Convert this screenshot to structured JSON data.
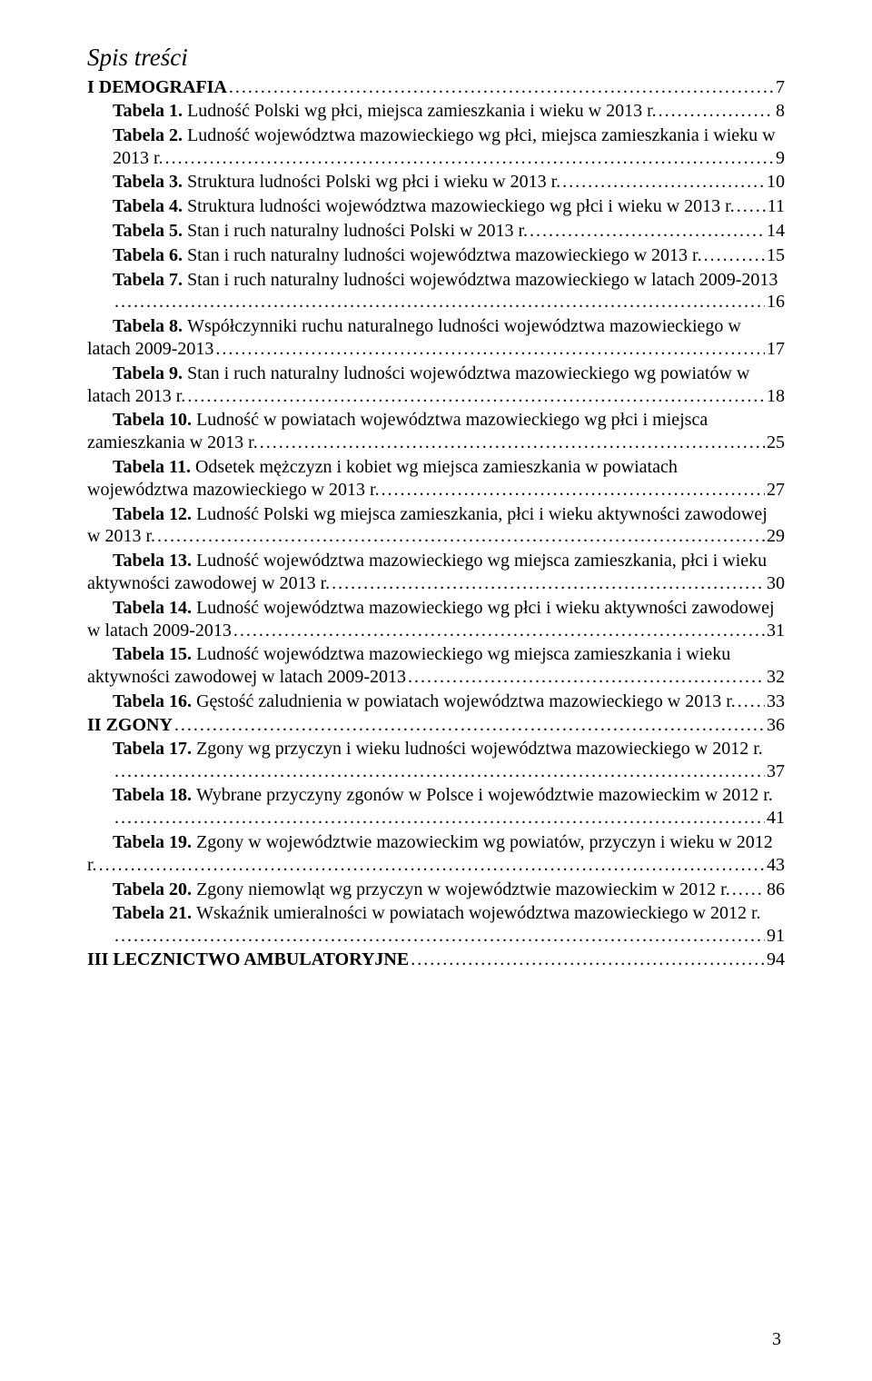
{
  "title": "Spis treści",
  "sections": [
    {
      "label": "I  DEMOGRAFIA",
      "page": "7"
    }
  ],
  "entries": [
    {
      "bold": "Tabela 1.",
      "pre": "",
      "last": "Ludność Polski wg płci, miejsca zamieszkania i wieku w 2013 r.",
      "page": "8"
    },
    {
      "bold": "Tabela 2.",
      "pre": "Ludność województwa mazowieckiego wg płci, miejsca zamieszkania i wieku w",
      "last": "2013 r.",
      "page": "9"
    },
    {
      "bold": "Tabela 3.",
      "pre": "",
      "last": "Struktura ludności Polski wg płci i wieku w 2013 r.",
      "page": "10"
    },
    {
      "bold": "Tabela 4.",
      "pre": "",
      "last": "Struktura ludności województwa mazowieckiego wg płci i wieku w 2013 r. ",
      "page": "11"
    },
    {
      "bold": "Tabela 5.",
      "pre": "",
      "last": "Stan i ruch naturalny ludności Polski w 2013 r.",
      "page": "14"
    },
    {
      "bold": "Tabela 6.",
      "pre": "",
      "last": "Stan i ruch naturalny ludności województwa mazowieckiego w 2013 r.",
      "page": "15"
    },
    {
      "bold": "Tabela 7.",
      "pre": "Stan i ruch naturalny ludności województwa mazowieckiego w latach 2009-2013",
      "last": "",
      "page": "16"
    },
    {
      "bold": "Tabela 8.",
      "pre": "Współczynniki ruchu naturalnego ludności województwa mazowieckiego w",
      "last": "latach 2009-2013",
      "page": "17",
      "noindent": true
    },
    {
      "bold": "Tabela 9.",
      "pre": "Stan i ruch naturalny ludności województwa mazowieckiego wg powiatów w",
      "last": "latach 2013 r. ",
      "page": "18",
      "noindent": true
    },
    {
      "bold": "Tabela 10.",
      "pre": "Ludność w powiatach województwa mazowieckiego wg płci i miejsca",
      "last": "zamieszkania w 2013 r. ",
      "page": "25",
      "noindent": true
    },
    {
      "bold": "Tabela 11.",
      "pre": "Odsetek mężczyzn i kobiet wg miejsca zamieszkania w powiatach",
      "last": "województwa mazowieckiego w 2013 r. ",
      "page": "27",
      "noindent": true
    },
    {
      "bold": "Tabela 12.",
      "pre": "Ludność Polski wg miejsca zamieszkania, płci i wieku aktywności zawodowej",
      "last": "w 2013 r.",
      "page": "29",
      "noindent": true
    },
    {
      "bold": "Tabela 13.",
      "pre": "Ludność województwa mazowieckiego wg miejsca zamieszkania, płci i wieku",
      "last": "aktywności zawodowej w 2013 r. ",
      "page": "30",
      "noindent": true
    },
    {
      "bold": "Tabela 14.",
      "pre": "Ludność województwa mazowieckiego wg płci i wieku aktywności zawodowej",
      "last": "w latach 2009-2013",
      "page": "31",
      "noindent": true
    },
    {
      "bold": "Tabela 15.",
      "pre": "Ludność województwa mazowieckiego wg miejsca zamieszkania i wieku",
      "last": "aktywności zawodowej w latach 2009-2013",
      "page": "32",
      "noindent": true
    },
    {
      "bold": "Tabela 16.",
      "pre": "",
      "last": "Gęstość zaludnienia w powiatach województwa mazowieckiego w 2013 r. ",
      "page": "33"
    }
  ],
  "section2": {
    "label": "II  ZGONY",
    "page": "36"
  },
  "entries2": [
    {
      "bold": "Tabela 17.",
      "pre": "Zgony wg przyczyn i wieku ludności województwa mazowieckiego w 2012 r.",
      "last": "",
      "page": "37"
    },
    {
      "bold": "Tabela 18.",
      "pre": "Wybrane przyczyny zgonów w Polsce i województwie mazowieckim w 2012 r.",
      "last": "",
      "page": "41"
    },
    {
      "bold": "Tabela 19.",
      "pre": "Zgony w województwie mazowieckim wg powiatów, przyczyn i wieku w 2012",
      "last": "r.",
      "page": "43",
      "noindent": true
    },
    {
      "bold": "Tabela 20.",
      "pre": "",
      "last": "Zgony niemowląt wg przyczyn w województwie mazowieckim w 2012 r. ",
      "page": "86"
    },
    {
      "bold": "Tabela 21.",
      "pre": "Wskaźnik umieralności w powiatach województwa mazowieckiego w 2012 r.",
      "last": "",
      "page": "91"
    }
  ],
  "section3": {
    "label": "III  LECZNICTWO AMBULATORYJNE",
    "page": "94"
  },
  "pageNumber": "3",
  "colors": {
    "text": "#000000",
    "background": "#ffffff"
  },
  "typography": {
    "family": "Times New Roman",
    "body_pt": 15,
    "title_pt": 20,
    "italic_title": true
  }
}
